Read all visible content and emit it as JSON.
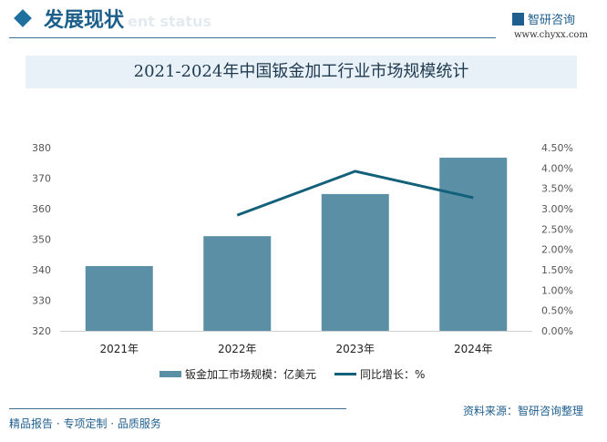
{
  "header": {
    "title": "发展现状",
    "subtitle": "ent status",
    "logo_text": "智研咨询",
    "logo_url": "www.chyxx.com"
  },
  "chart_data": {
    "type": "bar",
    "title": "2021-2024年中国钣金加工行业市场规模统计",
    "categories": [
      "2021年",
      "2022年",
      "2023年",
      "2024年"
    ],
    "series": [
      {
        "name": "钣金加工市场规模：亿美元",
        "type": "bar",
        "axis": "left",
        "values": [
          341.2,
          351.0,
          364.8,
          376.7
        ],
        "color": "#5b8fa6"
      },
      {
        "name": "同比增长：%",
        "type": "line",
        "axis": "right",
        "values": [
          null,
          2.84,
          3.92,
          3.27
        ],
        "color": "#13607a"
      }
    ],
    "y_left": {
      "ylim": [
        320,
        380
      ],
      "ticks": [
        "320",
        "330",
        "340",
        "350",
        "360",
        "370",
        "380"
      ]
    },
    "y_right": {
      "ylim": [
        0,
        4.5
      ],
      "ticks": [
        "0.00%",
        "0.50%",
        "1.00%",
        "1.50%",
        "2.00%",
        "2.50%",
        "3.00%",
        "3.50%",
        "4.00%",
        "4.50%"
      ]
    },
    "grid": false,
    "legend": "bottom"
  },
  "footer": {
    "left": "精品报告 · 专项定制 · 品质服务",
    "source": "资料来源：智研咨询整理"
  }
}
